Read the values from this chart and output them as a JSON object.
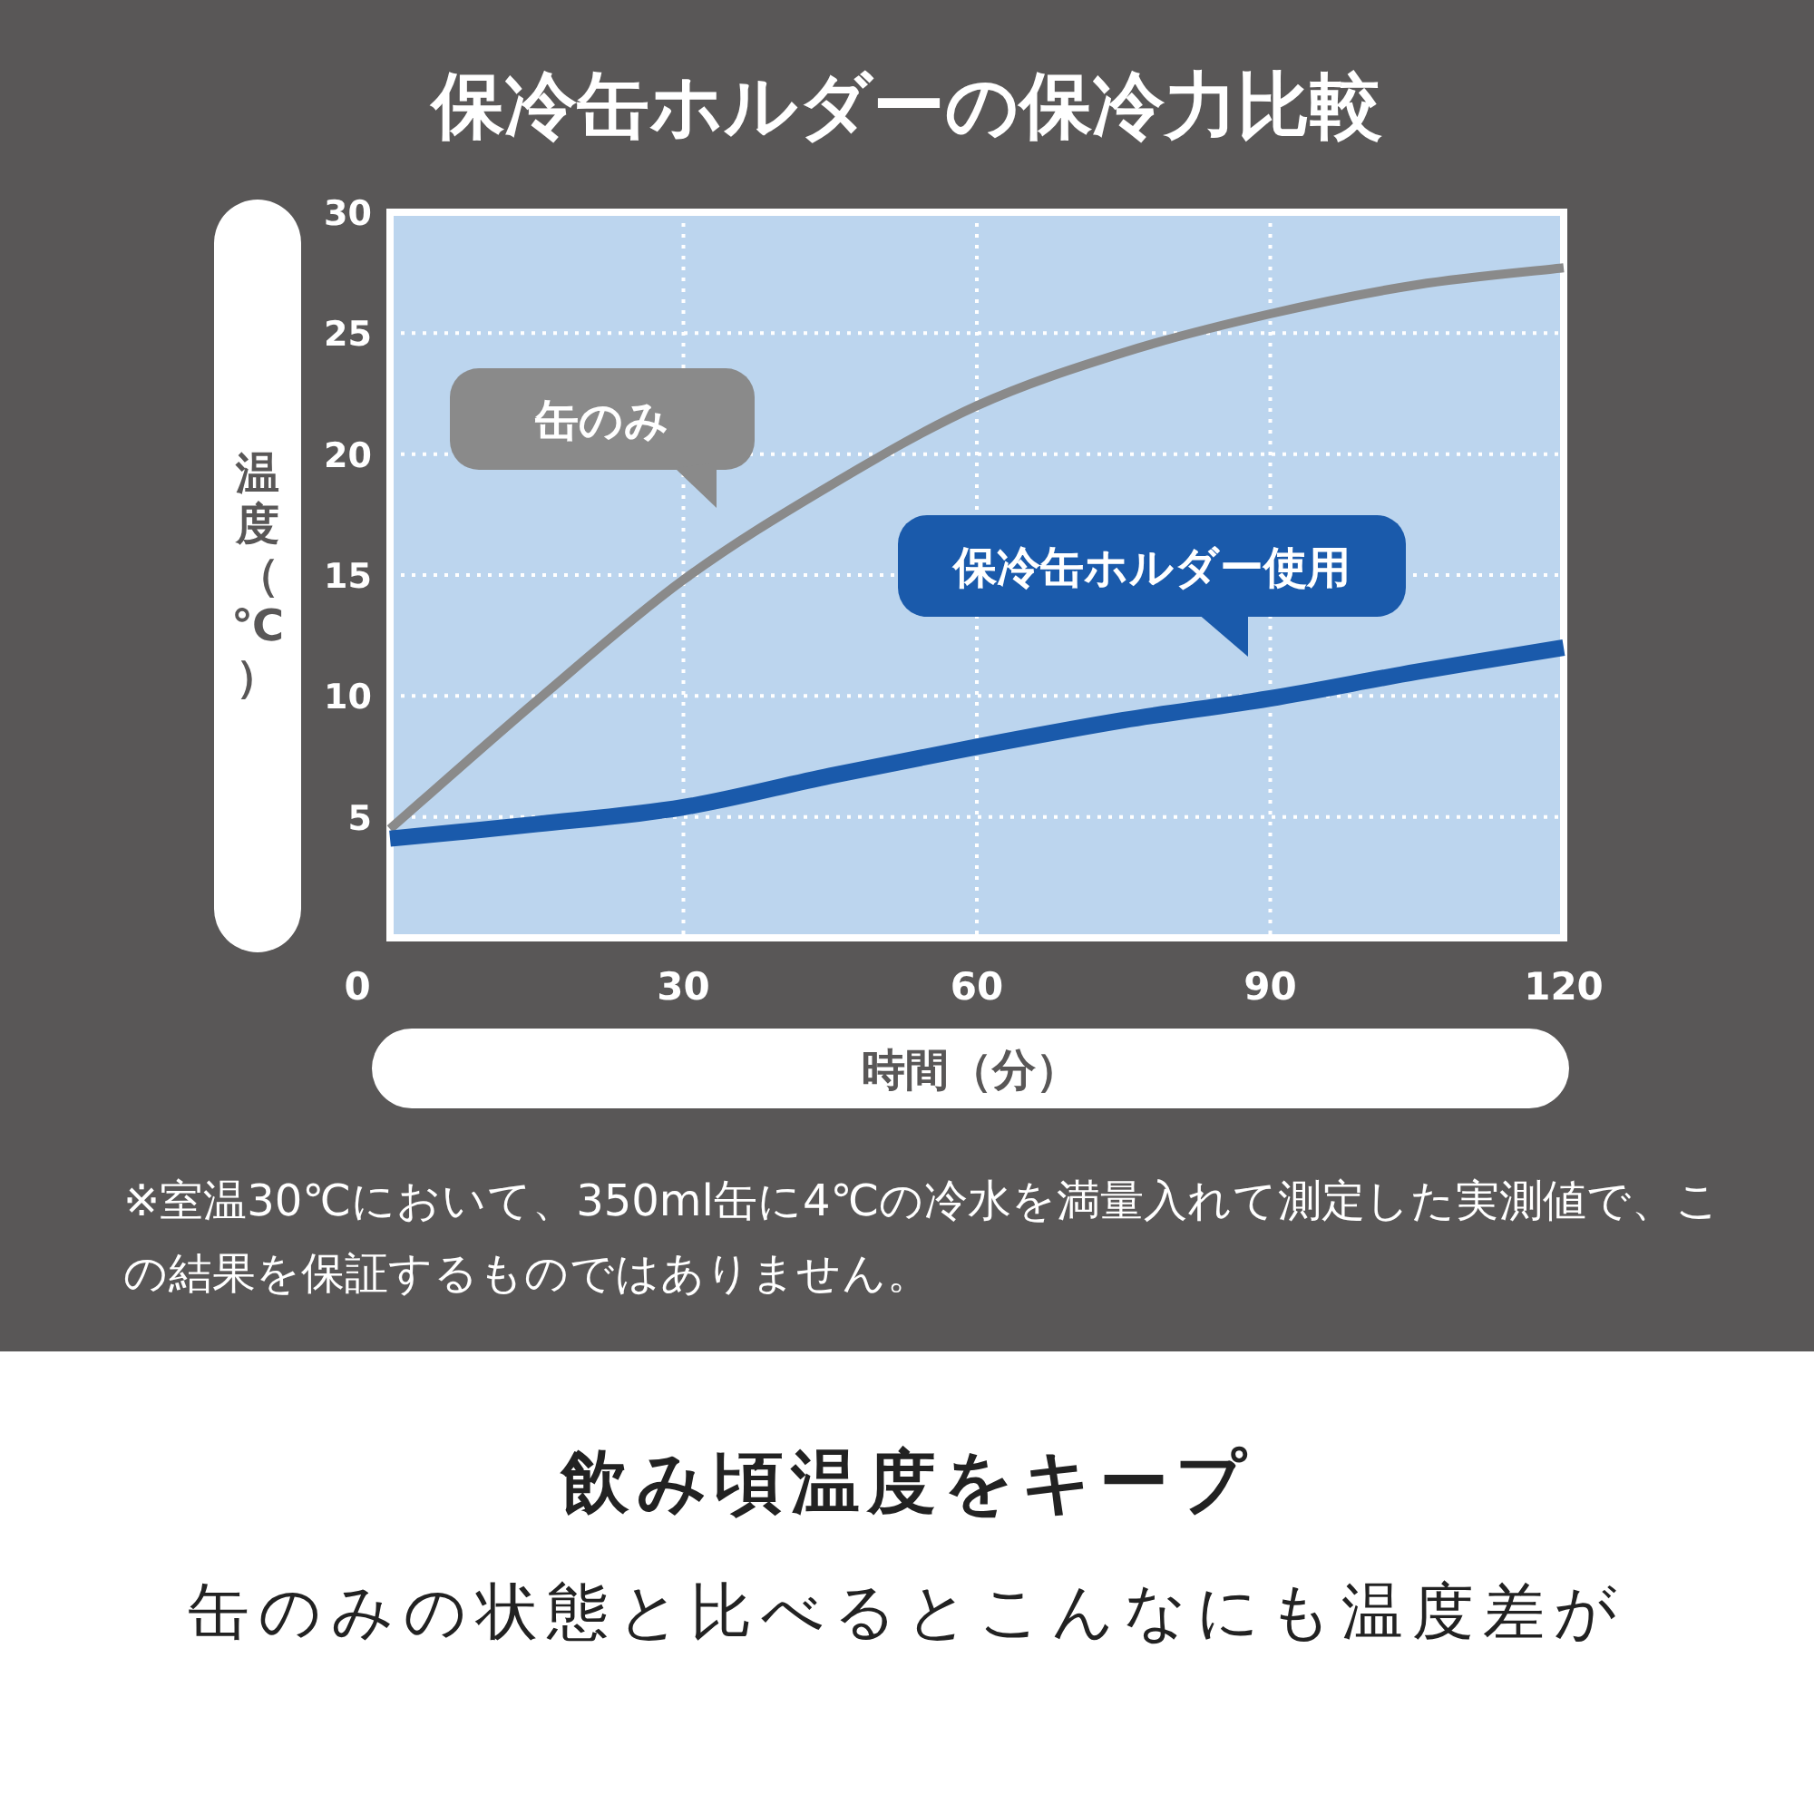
{
  "chart_data": {
    "type": "line",
    "title": "保冷缶ホルダーの保冷力比較",
    "xlabel": "時間（分）",
    "ylabel": "温度（℃）",
    "x": [
      0,
      15,
      30,
      45,
      60,
      75,
      90,
      105,
      120
    ],
    "series": [
      {
        "name": "缶のみ",
        "color": "#8a8a8a",
        "values": [
          4.5,
          9.8,
          14.8,
          18.7,
          22.0,
          24.2,
          25.8,
          27.0,
          27.7
        ]
      },
      {
        "name": "保冷缶ホルダー使用",
        "color": "#1a5aab",
        "values": [
          4.1,
          4.7,
          5.4,
          6.7,
          7.9,
          9.0,
          9.9,
          11.0,
          12.0
        ]
      }
    ],
    "xlim": [
      0,
      120
    ],
    "xticks": [
      0,
      30,
      60,
      90,
      120
    ],
    "ylim": [
      0,
      30
    ],
    "yticks": [
      5,
      10,
      15,
      20,
      25,
      30
    ],
    "grid": true,
    "legend": false,
    "marker": "none",
    "line_style": "solid",
    "annotations": [
      "※室温30℃において、350ml缶に4℃の冷水を満量入れて測定した実測値で、この結果を保証するものではありません。",
      "飲み頃温度をキープ",
      "缶のみの状態と比べるとこんなにも温度差が"
    ]
  }
}
